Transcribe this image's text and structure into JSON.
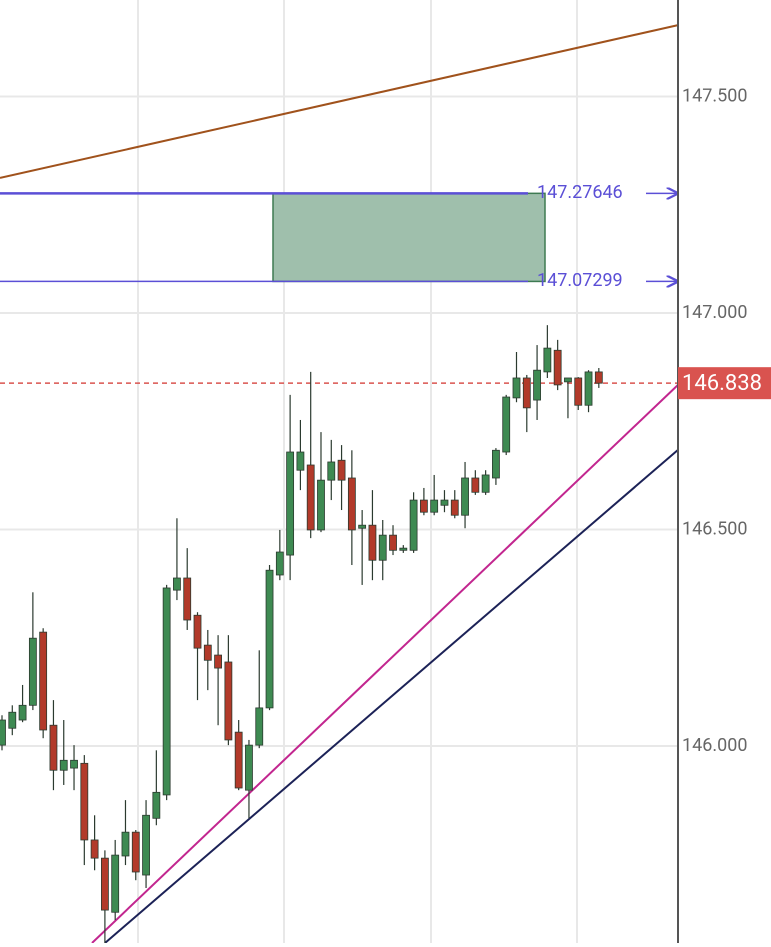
{
  "chart_data": {
    "type": "candlestick",
    "ylim": [
      145.545,
      147.723
    ],
    "yticks": [
      {
        "value": 147.5,
        "label": "147.500"
      },
      {
        "value": 147,
        "label": "147.000"
      },
      {
        "value": 146.5,
        "label": "146.500"
      },
      {
        "value": 146,
        "label": "146.000"
      }
    ],
    "grid": true,
    "up_color": "#3e8a52",
    "down_color": "#b23a2a",
    "open": [
      146.002,
      146.041,
      146.06,
      146.094,
      146.263,
      146.048,
      145.944,
      145.949,
      145.96,
      145.783,
      145.741,
      145.616,
      145.746,
      145.801,
      145.702,
      145.833,
      145.887,
      146.36,
      146.388,
      146.302,
      146.233,
      146.21,
      146.194,
      146.032,
      145.898,
      146.002,
      146.088,
      146.395,
      146.441,
      146.637,
      146.649,
      146.499,
      146.614,
      146.66,
      146.619,
      146.503,
      146.51,
      146.429,
      146.487,
      146.452,
      146.452,
      146.568,
      146.54,
      146.556,
      146.568,
      146.533,
      146.619,
      146.586,
      146.619,
      146.679,
      146.804,
      146.85,
      146.799,
      146.864,
      146.914,
      146.841,
      146.85,
      146.787,
      146.864
    ],
    "high": [
      146.071,
      146.094,
      146.141,
      146.355,
      146.272,
      146.106,
      146.06,
      146.002,
      145.979,
      145.84,
      145.759,
      145.783,
      145.875,
      145.806,
      145.875,
      145.99,
      146.372,
      146.526,
      146.457,
      146.309,
      146.268,
      146.256,
      146.256,
      146.06,
      146.014,
      146.221,
      146.418,
      146.499,
      146.811,
      146.753,
      146.864,
      146.725,
      146.707,
      146.695,
      146.683,
      146.545,
      146.591,
      146.522,
      146.51,
      146.464,
      146.586,
      146.596,
      146.626,
      146.591,
      146.591,
      146.656,
      146.637,
      146.637,
      146.688,
      146.811,
      146.91,
      146.857,
      146.926,
      146.972,
      146.938,
      146.85,
      146.852,
      146.868,
      146.873
    ],
    "low": [
      145.99,
      146.025,
      146.055,
      146.083,
      146.018,
      145.898,
      145.91,
      145.898,
      145.725,
      145.713,
      145.545,
      145.598,
      145.725,
      145.69,
      145.672,
      145.817,
      145.875,
      146.337,
      146.268,
      146.106,
      146.129,
      146.048,
      146.002,
      145.898,
      145.833,
      145.995,
      146.083,
      146.383,
      146.383,
      146.591,
      146.48,
      146.494,
      146.568,
      146.545,
      146.418,
      146.372,
      146.383,
      146.383,
      146.441,
      146.446,
      146.446,
      146.533,
      146.533,
      146.54,
      146.526,
      146.503,
      146.58,
      146.58,
      146.603,
      146.672,
      146.794,
      146.725,
      146.753,
      146.85,
      146.822,
      146.757,
      146.776,
      146.771,
      146.827
    ],
    "close": [
      146.06,
      146.078,
      146.094,
      146.249,
      146.037,
      145.944,
      145.967,
      145.967,
      145.783,
      145.741,
      145.621,
      145.748,
      145.801,
      145.709,
      145.84,
      145.893,
      146.365,
      146.388,
      146.291,
      146.226,
      146.198,
      146.18,
      146.014,
      145.903,
      146.002,
      146.088,
      146.406,
      146.448,
      146.679,
      146.679,
      146.499,
      146.614,
      146.656,
      146.614,
      146.499,
      146.51,
      146.429,
      146.487,
      146.452,
      146.457,
      146.568,
      146.54,
      146.568,
      146.568,
      146.533,
      146.619,
      146.586,
      146.626,
      146.683,
      146.806,
      146.85,
      146.781,
      146.868,
      146.919,
      146.834,
      146.85,
      146.787,
      146.864,
      146.838
    ],
    "price_line": {
      "value": 146.838,
      "color": "#d9534f"
    },
    "levels": [
      {
        "value": 147.27646,
        "color": "#5b4fd6"
      },
      {
        "value": 147.07299,
        "color": "#5b4fd6"
      }
    ],
    "zone_color": "#9fbfac",
    "trend_lines": [
      {
        "color": "#a0521c",
        "values": [
          147.312,
          147.665
        ]
      },
      {
        "color": "#c2268f",
        "values": [
          145.545,
          146.834
        ]
      },
      {
        "color": "#1c2257",
        "values": [
          145.545,
          146.684
        ]
      }
    ]
  }
}
